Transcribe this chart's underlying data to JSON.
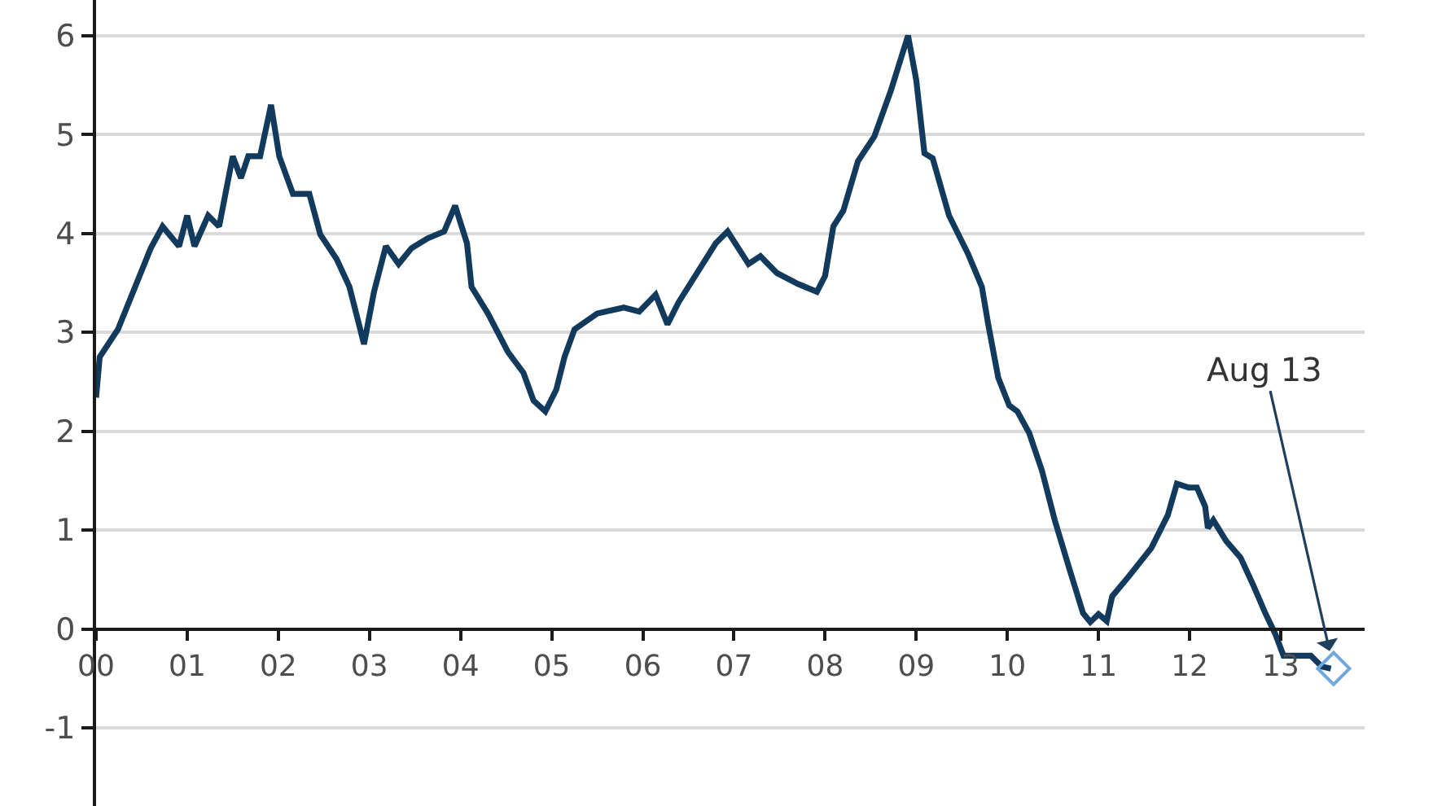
{
  "chart_data": {
    "type": "line",
    "x": [
      2000.0,
      2000.04,
      2000.24,
      2000.6,
      2000.73,
      2000.91,
      2001.0,
      2001.08,
      2001.23,
      2001.35,
      2001.5,
      2001.59,
      2001.67,
      2001.8,
      2001.92,
      2002.01,
      2002.16,
      2002.34,
      2002.46,
      2002.64,
      2002.78,
      2002.94,
      2003.05,
      2003.18,
      2003.32,
      2003.46,
      2003.64,
      2003.82,
      2003.94,
      2004.07,
      2004.12,
      2004.3,
      2004.52,
      2004.69,
      2004.8,
      2004.93,
      2005.05,
      2005.14,
      2005.25,
      2005.5,
      2005.79,
      2005.96,
      2006.14,
      2006.27,
      2006.39,
      2006.8,
      2006.93,
      2007.16,
      2007.29,
      2007.47,
      2007.7,
      2007.91,
      2008.0,
      2008.09,
      2008.2,
      2008.36,
      2008.54,
      2008.72,
      2008.91,
      2009.0,
      2009.09,
      2009.18,
      2009.36,
      2009.57,
      2009.72,
      2009.79,
      2009.9,
      2010.02,
      2010.11,
      2010.24,
      2010.38,
      2010.52,
      2010.68,
      2010.83,
      2010.91,
      2011.0,
      2011.09,
      2011.15,
      2011.33,
      2011.58,
      2011.76,
      2011.86,
      2011.99,
      2012.08,
      2012.17,
      2012.2,
      2012.26,
      2012.4,
      2012.56,
      2012.7,
      2012.83,
      2012.94,
      2013.03,
      2013.19,
      2013.33,
      2013.45,
      2013.55
    ],
    "series": [
      {
        "color": "#123a5c",
        "marker": "none",
        "values": [
          2.34,
          2.75,
          3.03,
          3.85,
          4.07,
          3.87,
          4.18,
          3.87,
          4.18,
          4.07,
          4.78,
          4.56,
          4.78,
          4.78,
          5.3,
          4.78,
          4.4,
          4.4,
          3.99,
          3.74,
          3.46,
          2.88,
          3.41,
          3.87,
          3.69,
          3.85,
          3.95,
          4.02,
          4.28,
          3.9,
          3.46,
          3.19,
          2.8,
          2.59,
          2.31,
          2.2,
          2.42,
          2.75,
          3.03,
          3.19,
          3.25,
          3.21,
          3.38,
          3.08,
          3.3,
          3.9,
          4.02,
          3.69,
          3.77,
          3.6,
          3.49,
          3.41,
          3.57,
          4.07,
          4.23,
          4.73,
          4.98,
          5.44,
          6.0,
          5.55,
          4.81,
          4.76,
          4.18,
          3.79,
          3.46,
          3.08,
          2.54,
          2.26,
          2.2,
          1.98,
          1.6,
          1.1,
          0.61,
          0.16,
          0.07,
          0.15,
          0.08,
          0.33,
          0.53,
          0.82,
          1.15,
          1.47,
          1.43,
          1.43,
          1.24,
          1.02,
          1.1,
          0.89,
          0.72,
          0.44,
          0.16,
          -0.05,
          -0.27,
          -0.27,
          -0.27,
          -0.38,
          -0.4
        ]
      },
      {
        "type": "scatter",
        "marker": "diamond",
        "color": "#6fa8dc",
        "x": [
          2013.58
        ],
        "values": [
          -0.4
        ]
      }
    ],
    "xlim": [
      2000,
      2013.92
    ],
    "xticks": [
      {
        "value": 2000,
        "label": "00"
      },
      {
        "value": 2001,
        "label": "01"
      },
      {
        "value": 2002,
        "label": "02"
      },
      {
        "value": 2003,
        "label": "03"
      },
      {
        "value": 2004,
        "label": "04"
      },
      {
        "value": 2005,
        "label": "05"
      },
      {
        "value": 2006,
        "label": "06"
      },
      {
        "value": 2007,
        "label": "07"
      },
      {
        "value": 2008,
        "label": "08"
      },
      {
        "value": 2009,
        "label": "09"
      },
      {
        "value": 2010,
        "label": "10"
      },
      {
        "value": 2011,
        "label": "11"
      },
      {
        "value": 2012,
        "label": "12"
      },
      {
        "value": 2013,
        "label": "13"
      }
    ],
    "ylim": [
      -1.79,
      6.36
    ],
    "yticks": [
      -1,
      0,
      1,
      2,
      3,
      4,
      5,
      6
    ],
    "grid": "y",
    "annotations": [
      {
        "text": "Aug 13",
        "x": 2013.58,
        "y": -0.4
      }
    ]
  }
}
